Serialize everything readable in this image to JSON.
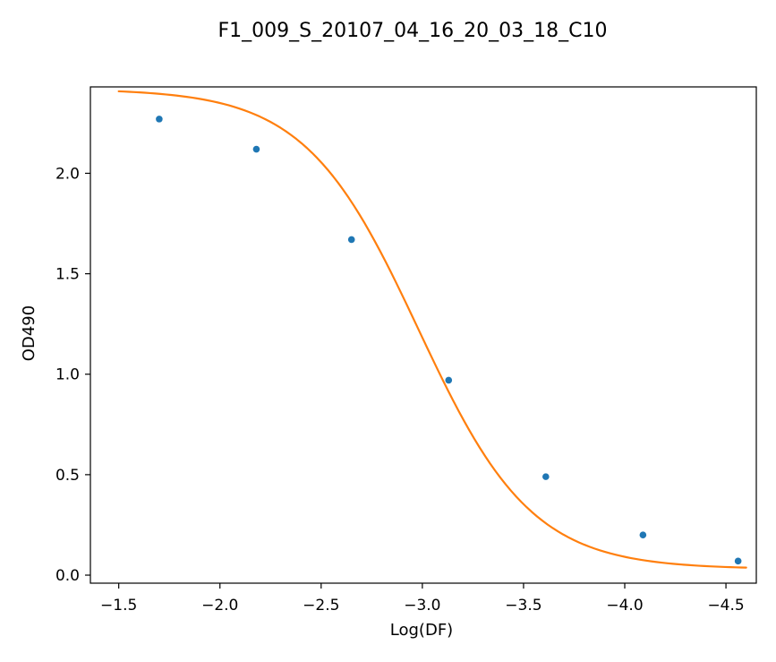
{
  "chart_data": {
    "type": "scatter",
    "title": "F1_009_S_20107_04_16_20_03_18_C10",
    "xlabel": "Log(DF)",
    "ylabel": "OD490",
    "x_reversed": true,
    "xlim": [
      -1.36,
      -4.65
    ],
    "ylim": [
      -0.04,
      2.43
    ],
    "xticks": [
      -1.5,
      -2.0,
      -2.5,
      -3.0,
      -3.5,
      -4.0,
      -4.5
    ],
    "xtick_labels": [
      "−1.5",
      "−2.0",
      "−2.5",
      "−3.0",
      "−3.5",
      "−4.0",
      "−4.5"
    ],
    "yticks": [
      0.0,
      0.5,
      1.0,
      1.5,
      2.0
    ],
    "ytick_labels": [
      "0.0",
      "0.5",
      "1.0",
      "1.5",
      "2.0"
    ],
    "grid": false,
    "series": [
      {
        "kind": "scatter",
        "x": [
          -1.7,
          -2.18,
          -2.65,
          -3.13,
          -3.61,
          -4.09,
          -4.56
        ],
        "y": [
          2.27,
          2.12,
          1.67,
          0.97,
          0.49,
          0.2,
          0.07
        ]
      },
      {
        "kind": "fit-curve",
        "model": "4PL logistic",
        "x_range": [
          -1.5,
          -4.6
        ],
        "top": 2.42,
        "bottom": 0.03,
        "ec50_log": -2.98,
        "hill": 1.55
      }
    ],
    "colors": {
      "points": "#1f77b4",
      "fit": "#ff7f0e",
      "axes": "#000000"
    }
  }
}
